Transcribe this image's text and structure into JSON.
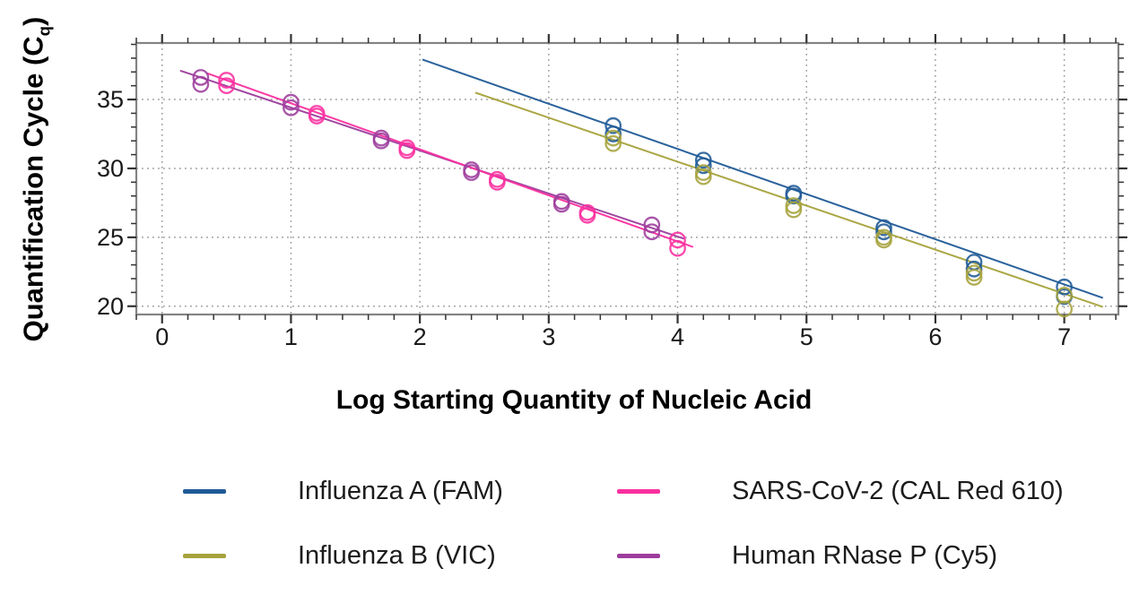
{
  "chart_data": {
    "type": "scatter",
    "title": "",
    "xlabel": "Log Starting Quantity of Nucleic Acid",
    "ylabel": "Quantification Cycle (Cq)",
    "ylabel_parts": {
      "prefix": "Quantification Cycle (C",
      "sub": "q",
      "suffix": ")"
    },
    "xlim": [
      -0.2,
      7.42
    ],
    "ylim": [
      19.4,
      39.1
    ],
    "x_ticks": [
      0,
      1,
      2,
      3,
      4,
      5,
      6,
      7
    ],
    "y_ticks": [
      20,
      25,
      30,
      35
    ],
    "x_minor_step": 0.2,
    "y_minor_step": 1,
    "grid": "dotted",
    "grid_color": "#9c9c9c",
    "frame_color": "#848484",
    "tick_color": "#333333",
    "tick_label_color": "#1a1a1a",
    "legend_position": "bottom",
    "series": [
      {
        "name": "Influenza A (FAM)",
        "color": "#1f5a96",
        "marker": "open-circle",
        "points": [
          [
            3.5,
            33.1
          ],
          [
            3.5,
            32.5
          ],
          [
            4.2,
            30.6
          ],
          [
            4.2,
            30.2
          ],
          [
            4.9,
            28.2
          ],
          [
            4.9,
            28.0
          ],
          [
            5.6,
            25.7
          ],
          [
            5.6,
            25.4
          ],
          [
            6.3,
            23.2
          ],
          [
            6.3,
            22.7
          ],
          [
            7.0,
            21.4
          ],
          [
            7.0,
            20.7
          ]
        ],
        "trend_line": {
          "x1": 2.02,
          "y1": 37.9,
          "x2": 7.3,
          "y2": 20.6
        }
      },
      {
        "name": "Influenza B (VIC)",
        "color": "#a6a33c",
        "marker": "open-circle",
        "points": [
          [
            3.5,
            32.2
          ],
          [
            3.5,
            31.8
          ],
          [
            4.2,
            29.7
          ],
          [
            4.2,
            29.4
          ],
          [
            4.9,
            27.3
          ],
          [
            4.9,
            27.0
          ],
          [
            5.6,
            25.0
          ],
          [
            5.6,
            24.8
          ],
          [
            6.3,
            22.4
          ],
          [
            6.3,
            22.1
          ],
          [
            7.0,
            20.8
          ],
          [
            7.0,
            19.8
          ]
        ],
        "trend_line": {
          "x1": 2.43,
          "y1": 35.5,
          "x2": 7.3,
          "y2": 19.95
        }
      },
      {
        "name": "SARS-CoV-2 (CAL Red 610)",
        "color": "#fa2f9f",
        "marker": "open-circle",
        "points": [
          [
            0.5,
            36.4
          ],
          [
            0.5,
            36.0
          ],
          [
            1.2,
            34.0
          ],
          [
            1.2,
            33.8
          ],
          [
            1.9,
            31.5
          ],
          [
            1.9,
            31.3
          ],
          [
            2.6,
            29.2
          ],
          [
            2.6,
            29.0
          ],
          [
            3.3,
            26.8
          ],
          [
            3.3,
            26.6
          ],
          [
            4.0,
            24.8
          ],
          [
            4.0,
            24.2
          ]
        ],
        "trend_line": {
          "x1": 0.35,
          "y1": 36.9,
          "x2": 4.12,
          "y2": 24.3
        }
      },
      {
        "name": "Human RNase P (Cy5)",
        "color": "#9d3c9d",
        "marker": "open-circle",
        "points": [
          [
            0.3,
            36.6
          ],
          [
            0.3,
            36.1
          ],
          [
            1.0,
            34.8
          ],
          [
            1.0,
            34.4
          ],
          [
            1.7,
            32.2
          ],
          [
            1.7,
            32.0
          ],
          [
            2.4,
            29.9
          ],
          [
            2.4,
            29.7
          ],
          [
            3.1,
            27.6
          ],
          [
            3.1,
            27.4
          ],
          [
            3.8,
            25.9
          ],
          [
            3.8,
            25.4
          ]
        ],
        "trend_line": {
          "x1": 0.14,
          "y1": 37.1,
          "x2": 4.05,
          "y2": 24.9
        }
      }
    ]
  }
}
